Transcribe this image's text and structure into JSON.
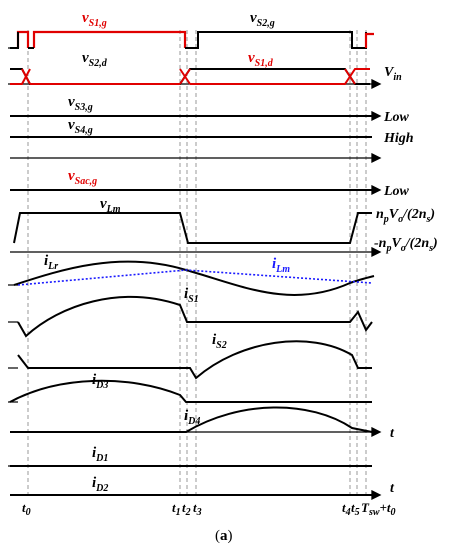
{
  "figure": {
    "caption_letter": "a",
    "colors": {
      "primary": "#000000",
      "highlight": "#e00000",
      "magnetizing": "#1a1aff",
      "dashed": "#999999"
    },
    "signals": {
      "vS1g": {
        "base": "v",
        "sub": "S1,g"
      },
      "vS2g": {
        "base": "v",
        "sub": "S2,g"
      },
      "vS2d": {
        "base": "v",
        "sub": "S2,d"
      },
      "vS1d": {
        "base": "v",
        "sub": "S1,d"
      },
      "vS3g": {
        "base": "v",
        "sub": "S3,g"
      },
      "vS4g": {
        "base": "v",
        "sub": "S4,g"
      },
      "vSacg": {
        "base": "v",
        "sub": "Sac,g"
      },
      "vLm": {
        "base": "v",
        "sub": "Lm"
      },
      "iLr": {
        "base": "i",
        "sub": "Lr"
      },
      "iLm": {
        "base": "i",
        "sub": "Lm"
      },
      "iS1": {
        "base": "i",
        "sub": "S1"
      },
      "iS2": {
        "base": "i",
        "sub": "S2"
      },
      "iD3": {
        "base": "i",
        "sub": "D3"
      },
      "iD4": {
        "base": "i",
        "sub": "D4"
      },
      "iD1": {
        "base": "i",
        "sub": "D1"
      },
      "iD2": {
        "base": "i",
        "sub": "D2"
      }
    },
    "right_labels": {
      "vin": {
        "base": "V",
        "sub": "in"
      },
      "low1": "Low",
      "high": "High",
      "low2": "Low",
      "pos": "n",
      "pos_sub_p": "p",
      "pos_mid": "V",
      "pos_sub_o": "o",
      "pos_tail": "/(2n",
      "pos_sub_s": "s",
      "pos_end": ")",
      "neg": "-n",
      "t": "t"
    },
    "time_marks": {
      "t0": {
        "base": "t",
        "sub": "0"
      },
      "t1": {
        "base": "t",
        "sub": "1"
      },
      "t2": {
        "base": "t",
        "sub": "2"
      },
      "t3": {
        "base": "t",
        "sub": "3"
      },
      "t4": {
        "base": "t",
        "sub": "4"
      },
      "t5": {
        "base": "t",
        "sub": "5"
      },
      "tsw": {
        "base": "T",
        "sub": "sw",
        "tail": "+t",
        "tail_sub": "0"
      }
    }
  }
}
